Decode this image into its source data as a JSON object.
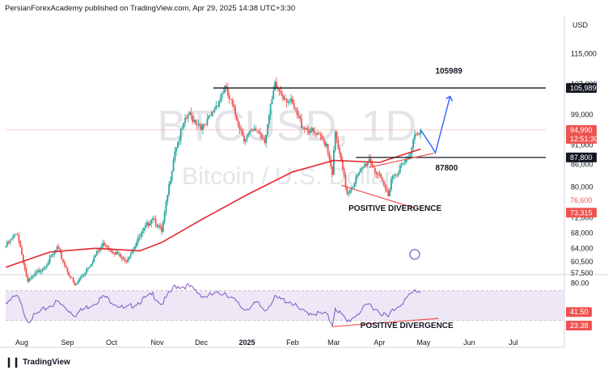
{
  "header": {
    "text": "PersianForexAcademy published on TradingView.com, Apr 29, 2025 14:38 UTC+3:30"
  },
  "currency": "USD",
  "watermark": {
    "symbol": "BTCUSD, 1D",
    "name": "Bitcoin / U.S. Dollar"
  },
  "footer": {
    "logo_icon": "tradingview-logo-icon",
    "brand": "TradingView"
  },
  "colors": {
    "up": "#26a69a",
    "down": "#ef5350",
    "ma": "#e0262e",
    "rsi": "#7e57c2",
    "projection": "#2962ff",
    "rsi_band": "#ede7f6"
  },
  "chart_data": [
    {
      "type": "candlestick",
      "title": "BTCUSD, 1D",
      "ylim": [
        57500,
        121000
      ],
      "y_ticks": [
        "115,000",
        "107,000",
        "99,000",
        "91,000",
        "86,000",
        "80,000",
        "72,000",
        "68,000",
        "64,000",
        "60,500",
        "57,500"
      ],
      "x_ticks": [
        "Aug",
        "Sep",
        "Oct",
        "Nov",
        "Dec",
        "2025",
        "Feb",
        "Mar",
        "Apr",
        "May",
        "Jun",
        "Jul"
      ],
      "anchor_points": [
        {
          "date": "2024-07-21",
          "close": 64500
        },
        {
          "date": "2024-07-29",
          "close": 68000
        },
        {
          "date": "2024-08-05",
          "close": 55000
        },
        {
          "date": "2024-08-20",
          "close": 61000
        },
        {
          "date": "2024-08-25",
          "close": 64000
        },
        {
          "date": "2024-09-06",
          "close": 54000
        },
        {
          "date": "2024-09-26",
          "close": 65500
        },
        {
          "date": "2024-10-10",
          "close": 60500
        },
        {
          "date": "2024-10-29",
          "close": 72500
        },
        {
          "date": "2024-11-04",
          "close": 68000
        },
        {
          "date": "2024-11-13",
          "close": 90000
        },
        {
          "date": "2024-11-22",
          "close": 99000
        },
        {
          "date": "2024-12-03",
          "close": 95500
        },
        {
          "date": "2024-12-17",
          "close": 106000
        },
        {
          "date": "2024-12-30",
          "close": 93000
        },
        {
          "date": "2025-01-08",
          "close": 95000
        },
        {
          "date": "2025-01-13",
          "close": 92500
        },
        {
          "date": "2025-01-20",
          "close": 106500
        },
        {
          "date": "2025-01-31",
          "close": 102000
        },
        {
          "date": "2025-02-07",
          "close": 96500
        },
        {
          "date": "2025-02-24",
          "close": 91500
        },
        {
          "date": "2025-02-28",
          "close": 84000
        },
        {
          "date": "2025-03-02",
          "close": 94000
        },
        {
          "date": "2025-03-10",
          "close": 78500
        },
        {
          "date": "2025-03-25",
          "close": 87500
        },
        {
          "date": "2025-04-07",
          "close": 78000
        },
        {
          "date": "2025-04-09",
          "close": 82500
        },
        {
          "date": "2025-04-21",
          "close": 87500
        },
        {
          "date": "2025-04-25",
          "close": 94500
        },
        {
          "date": "2025-04-29",
          "close": 94990
        }
      ],
      "moving_average": [
        {
          "date": "2024-07-21",
          "value": 59000
        },
        {
          "date": "2024-08-20",
          "value": 63000
        },
        {
          "date": "2024-09-20",
          "value": 64000
        },
        {
          "date": "2024-10-20",
          "value": 63300
        },
        {
          "date": "2024-11-04",
          "value": 65500
        },
        {
          "date": "2024-12-01",
          "value": 71500
        },
        {
          "date": "2025-01-01",
          "value": 78000
        },
        {
          "date": "2025-02-01",
          "value": 84000
        },
        {
          "date": "2025-03-01",
          "value": 87000
        },
        {
          "date": "2025-04-01",
          "value": 86500
        },
        {
          "date": "2025-04-29",
          "value": 90000
        }
      ],
      "price_labels": [
        {
          "text": "105,989",
          "style": "black"
        },
        {
          "text": "94,990",
          "style": "red"
        },
        {
          "text": "12:51:30",
          "style": "red"
        },
        {
          "text": "87,800",
          "style": "black"
        },
        {
          "text": "76,600",
          "style": "red-text"
        },
        {
          "text": "73,315",
          "style": "red"
        }
      ],
      "annotations": [
        {
          "text": "105989",
          "date": "2025-05-09",
          "price": 109800
        },
        {
          "text": "87800",
          "date": "2025-05-09",
          "price": 84400
        },
        {
          "text": "POSITIVE DIVERGENCE",
          "date": "2025-03-11",
          "price": 73800
        }
      ],
      "levels": [
        {
          "price": 105989,
          "from": "2024-12-09",
          "to": "2025-07-23",
          "style": "solid-black"
        },
        {
          "price": 87800,
          "from": "2025-03-16",
          "to": "2025-07-23",
          "style": "solid-black"
        },
        {
          "price": 94990,
          "from": "2024-07-21",
          "to": "2025-07-23",
          "style": "thin-red"
        }
      ],
      "projection": [
        {
          "date": "2025-04-29",
          "price": 94990
        },
        {
          "date": "2025-05-06",
          "price": 91000
        },
        {
          "date": "2025-05-09",
          "price": 89000
        },
        {
          "date": "2025-05-19",
          "price": 103800
        }
      ],
      "divergence_line": [
        {
          "date": "2025-03-06",
          "price": 80500
        },
        {
          "date": "2025-04-25",
          "price": 74500
        }
      ],
      "trendline": [
        {
          "date": "2025-03-25",
          "price": 85200
        },
        {
          "date": "2025-05-08",
          "price": 88900
        }
      ]
    },
    {
      "type": "line",
      "title": "RSI",
      "ylim": [
        18,
        86
      ],
      "y_ticks": [
        "80.00",
        "41.50",
        "23.38"
      ],
      "bands": [
        70,
        30
      ],
      "values": [
        {
          "date": "2024-07-21",
          "value": 55
        },
        {
          "date": "2024-07-29",
          "value": 62
        },
        {
          "date": "2024-08-05",
          "value": 30
        },
        {
          "date": "2024-08-20",
          "value": 50
        },
        {
          "date": "2024-08-25",
          "value": 55
        },
        {
          "date": "2024-09-06",
          "value": 38
        },
        {
          "date": "2024-09-26",
          "value": 62
        },
        {
          "date": "2024-10-10",
          "value": 45
        },
        {
          "date": "2024-10-29",
          "value": 65
        },
        {
          "date": "2024-11-04",
          "value": 52
        },
        {
          "date": "2024-11-13",
          "value": 76
        },
        {
          "date": "2024-11-22",
          "value": 76
        },
        {
          "date": "2024-12-03",
          "value": 62
        },
        {
          "date": "2024-12-17",
          "value": 68
        },
        {
          "date": "2024-12-30",
          "value": 45
        },
        {
          "date": "2025-01-08",
          "value": 53
        },
        {
          "date": "2025-01-13",
          "value": 44
        },
        {
          "date": "2025-01-20",
          "value": 60
        },
        {
          "date": "2025-01-31",
          "value": 55
        },
        {
          "date": "2025-02-07",
          "value": 42
        },
        {
          "date": "2025-02-24",
          "value": 38
        },
        {
          "date": "2025-02-28",
          "value": 25
        },
        {
          "date": "2025-03-02",
          "value": 48
        },
        {
          "date": "2025-03-10",
          "value": 28
        },
        {
          "date": "2025-03-25",
          "value": 52
        },
        {
          "date": "2025-04-07",
          "value": 34
        },
        {
          "date": "2025-04-09",
          "value": 42
        },
        {
          "date": "2025-04-21",
          "value": 62
        },
        {
          "date": "2025-04-25",
          "value": 70
        },
        {
          "date": "2025-04-29",
          "value": 69
        }
      ],
      "price_labels": [
        {
          "text": "41.50",
          "style": "red"
        },
        {
          "text": "23.38",
          "style": "red"
        }
      ],
      "annotations": [
        {
          "text": "POSITIVE DIVERGENCE",
          "date": "2025-03-19",
          "value": 20
        }
      ],
      "divergence_line": [
        {
          "date": "2025-02-28",
          "value": 22
        },
        {
          "date": "2025-05-11",
          "value": 33
        }
      ]
    }
  ]
}
